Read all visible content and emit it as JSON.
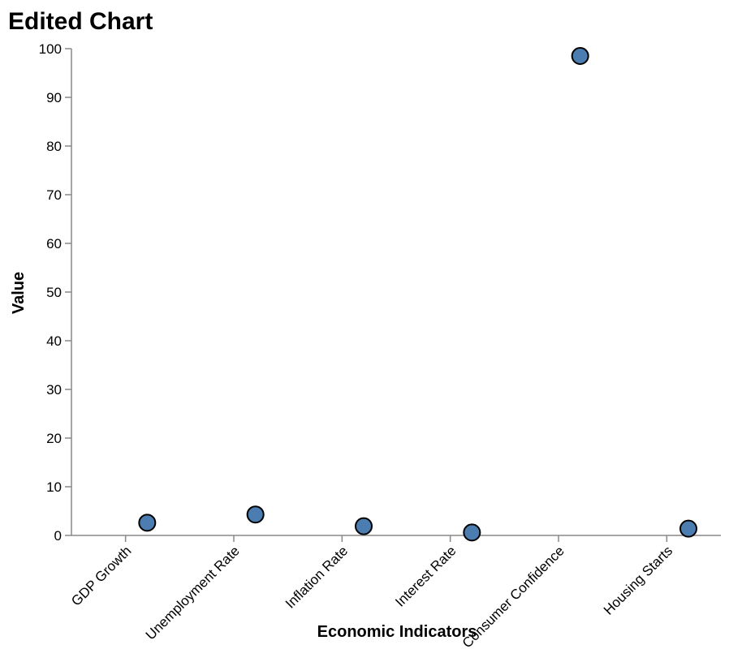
{
  "chart_data": {
    "type": "scatter",
    "title": "Edited Chart",
    "xlabel": "Economic Indicators",
    "ylabel": "Value",
    "ylim": [
      0,
      100
    ],
    "yticks": [
      0,
      10,
      20,
      30,
      40,
      50,
      60,
      70,
      80,
      90,
      100
    ],
    "categories": [
      "GDP Growth",
      "Unemployment Rate",
      "Inflation Rate",
      "Interest Rate",
      "Consumer Confidence",
      "Housing Starts"
    ],
    "points": [
      {
        "x": 0.2,
        "y": 2.6
      },
      {
        "x": 1.2,
        "y": 4.3
      },
      {
        "x": 2.2,
        "y": 1.9
      },
      {
        "x": 3.2,
        "y": 0.6
      },
      {
        "x": 4.2,
        "y": 98.5
      },
      {
        "x": 5.2,
        "y": 1.4
      }
    ],
    "colors": {
      "point": "#4c7db0"
    },
    "grid": false
  }
}
